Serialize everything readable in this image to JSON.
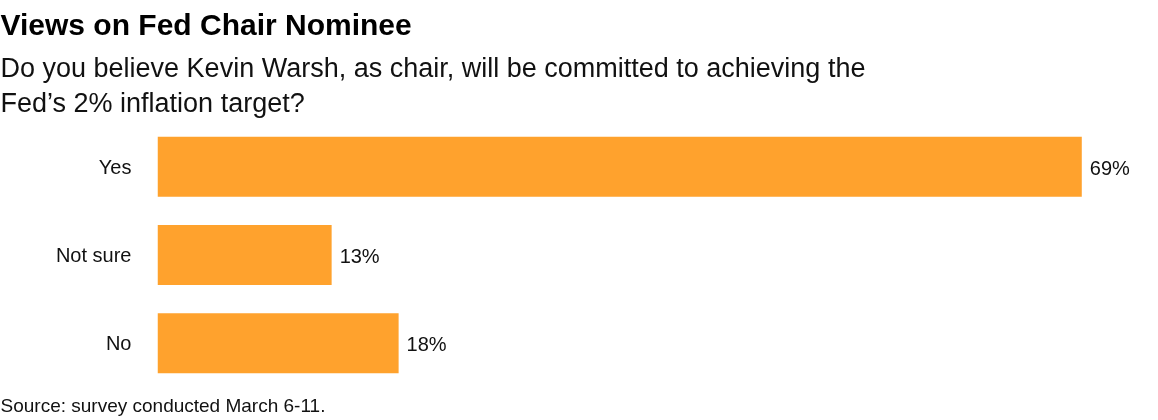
{
  "chart_data": {
    "type": "bar",
    "orientation": "horizontal",
    "title": "Views on Fed Chair Nominee",
    "subtitle": "Do you believe Kevin Warsh, as chair, will be committed to achieving the Fed’s 2% inflation target?",
    "categories": [
      "Yes",
      "Not sure",
      "No"
    ],
    "values": [
      69,
      13,
      18
    ],
    "value_labels": [
      "69%",
      "13%",
      "18%"
    ],
    "color": "#ffa22d",
    "annotations": [
      "Source: survey conducted March 6-11."
    ]
  }
}
